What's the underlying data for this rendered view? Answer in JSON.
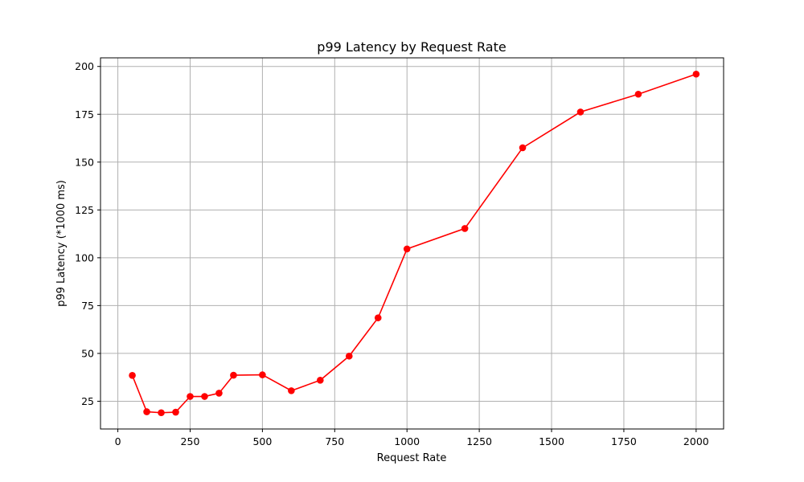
{
  "chart_data": {
    "type": "line",
    "title": "p99 Latency by Request Rate",
    "xlabel": "Request Rate",
    "ylabel": "p99 Latency (*1000 ms)",
    "xlim": [
      -60,
      2095
    ],
    "ylim": [
      10.5,
      204.5
    ],
    "xticks": [
      0,
      250,
      500,
      750,
      1000,
      1250,
      1500,
      1750,
      2000
    ],
    "yticks": [
      25,
      50,
      75,
      100,
      125,
      150,
      175,
      200
    ],
    "grid": true,
    "color": "#ff0000",
    "series": [
      {
        "x": [
          50,
          100,
          150,
          200,
          250,
          300,
          350,
          400,
          500,
          600,
          700,
          800,
          900,
          1000,
          1200,
          1400,
          1600,
          1800,
          2000
        ],
        "y": [
          38.5,
          19.5,
          19.0,
          19.3,
          27.5,
          27.5,
          29.2,
          38.6,
          38.8,
          30.5,
          36.0,
          48.6,
          68.6,
          104.6,
          115.3,
          157.5,
          176.2,
          185.5,
          196.0
        ]
      }
    ]
  }
}
